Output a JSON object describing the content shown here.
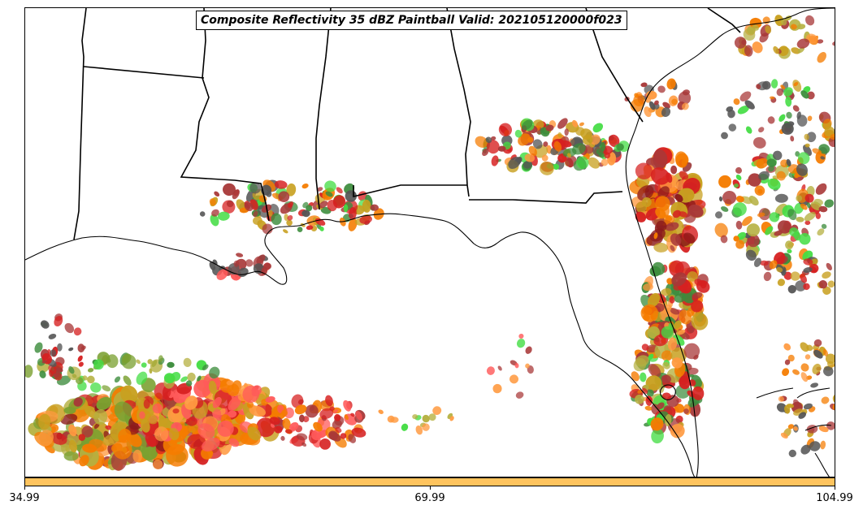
{
  "title": "Composite Reflectivity 35 dBZ Paintball Valid: 202105120000f023",
  "colorbar": {
    "color": "#ffc45e",
    "ticks": [
      "34.99",
      "69.99",
      "104.99"
    ],
    "range": [
      34.99,
      104.99
    ]
  },
  "colors": {
    "member_palette": [
      "#d62020",
      "#f57c00",
      "#c8a020",
      "#b5b040",
      "#a83838",
      "#3c8c3c",
      "#44dd44",
      "#ff5a5a",
      "#555555",
      "#ff9a40",
      "#8b1a1a",
      "#7aa030"
    ]
  },
  "map": {
    "region": "US Gulf Coast and Florida",
    "boundaries": [
      "state-borders",
      "coastline"
    ]
  }
}
